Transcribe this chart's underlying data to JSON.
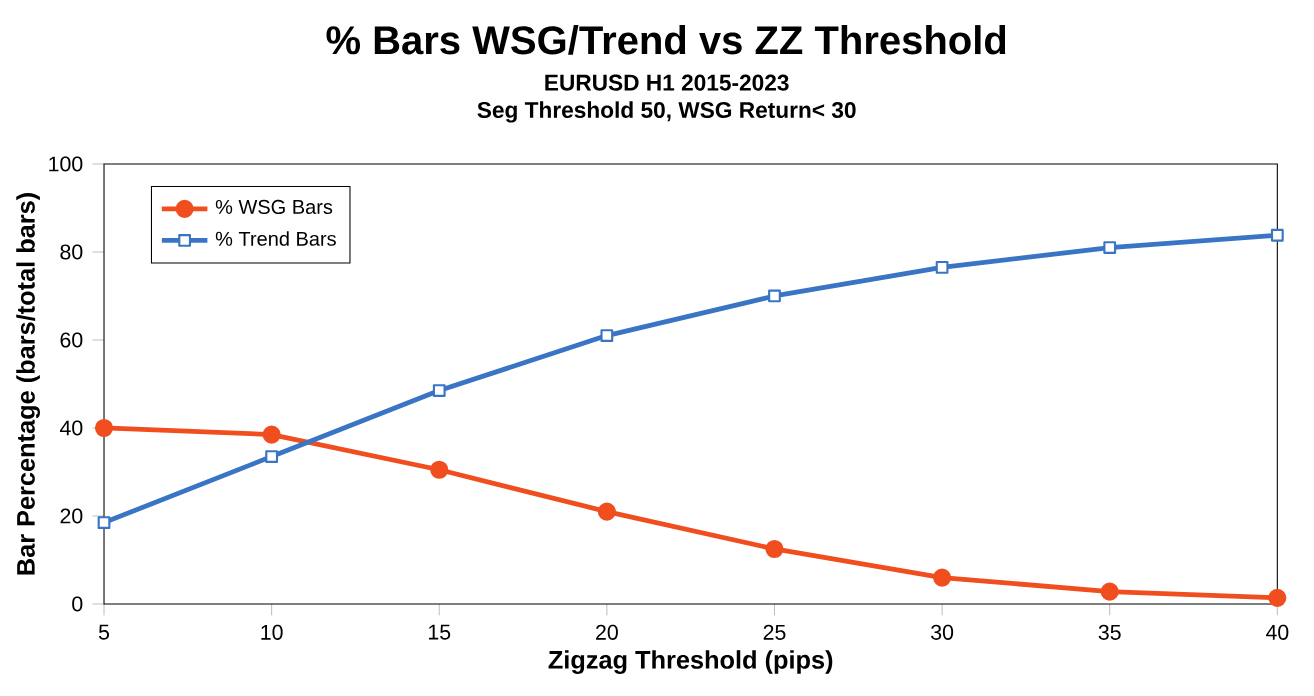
{
  "chart_data": {
    "type": "line",
    "title": "% Bars WSG/Trend vs ZZ Threshold",
    "subtitle": "EURUSD H1  2015-2023",
    "annotations": [
      "Seg Threshold 50, WSG Return< 30"
    ],
    "xlabel": "Zigzag Threshold (pips)",
    "ylabel": "Bar Percentage (bars/total bars)",
    "x": [
      5,
      10,
      15,
      20,
      25,
      30,
      35,
      40
    ],
    "series": [
      {
        "name": "% WSG Bars",
        "color": "#f04e1e",
        "marker": "circle",
        "values": [
          40,
          38.5,
          30.5,
          21,
          12.5,
          6,
          2.8,
          1.4
        ]
      },
      {
        "name": "% Trend Bars",
        "color": "#3a74c4",
        "marker": "square",
        "values": [
          18.5,
          33.5,
          48.5,
          61,
          70,
          76.5,
          81,
          83.8
        ]
      }
    ],
    "xlim": [
      5,
      40
    ],
    "ylim": [
      0,
      100
    ],
    "xticks": [
      5,
      10,
      15,
      20,
      25,
      30,
      35,
      40
    ],
    "yticks": [
      0,
      20,
      40,
      60,
      80,
      100
    ],
    "grid": false,
    "legend": "top left",
    "line_style": "solid"
  }
}
